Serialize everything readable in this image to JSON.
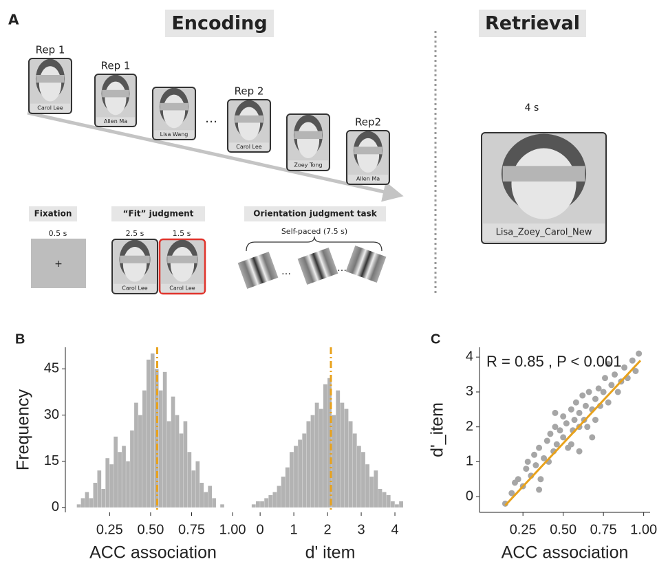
{
  "panel_a": {
    "label": "A",
    "encoding_title": "Encoding",
    "retrieval_title": "Retrieval",
    "encoding_faces": [
      {
        "rep": "Rep 1",
        "name": "Carol Lee"
      },
      {
        "rep": "Rep 1",
        "name": "Allen Ma"
      },
      {
        "name": "Lisa Wang"
      },
      {
        "rep": "Rep 2",
        "name": "Carol Lee"
      },
      {
        "name": "Zoey Tong"
      },
      {
        "rep": "Rep2",
        "name": "Allen Ma"
      }
    ],
    "ellipsis": "…",
    "fixation": {
      "title": "Fixation",
      "duration": "0.5 s",
      "symbol": "+"
    },
    "fit": {
      "title": "“Fit” judgment",
      "durations": [
        "2.5 s",
        "1.5 s"
      ],
      "names": [
        "Carol Lee",
        "Carol Lee"
      ]
    },
    "orientation": {
      "title": "Orientation judgment task",
      "duration": "Self-paced (7.5 s)",
      "ellipses": [
        "…",
        "…"
      ]
    },
    "retrieval": {
      "duration": "4 s",
      "label": "Lisa_Zoey_Carol_New"
    }
  },
  "panel_b_label": "B",
  "panel_c_label": "C",
  "chart_data": [
    {
      "type": "histogram",
      "xlabel": "ACC association",
      "ylabel": "Frequency",
      "color": "#b3b3b3",
      "bins": [
        0.05,
        0.075,
        0.1,
        0.125,
        0.15,
        0.175,
        0.2,
        0.225,
        0.25,
        0.275,
        0.3,
        0.325,
        0.35,
        0.375,
        0.4,
        0.425,
        0.45,
        0.475,
        0.5,
        0.525,
        0.55,
        0.575,
        0.6,
        0.625,
        0.65,
        0.675,
        0.7,
        0.725,
        0.75,
        0.775,
        0.8,
        0.825,
        0.85,
        0.875,
        0.9,
        0.925,
        0.95
      ],
      "values": [
        1,
        3,
        5,
        3,
        8,
        12,
        6,
        16,
        14,
        23,
        18,
        20,
        15,
        25,
        34,
        30,
        38,
        48,
        50,
        45,
        38,
        44,
        28,
        36,
        30,
        24,
        28,
        18,
        12,
        15,
        8,
        5,
        7,
        3,
        0,
        1
      ],
      "vline": 0.54,
      "vline_color": "#e8a21c",
      "xlim": [
        -0.02,
        1.05
      ],
      "ylim": [
        -1.6,
        52
      ],
      "xticks": [
        {
          "value": 0.25,
          "label": "0.25"
        },
        {
          "value": 0.5,
          "label": "0.50"
        },
        {
          "value": 0.75,
          "label": "0.75"
        },
        {
          "value": 1,
          "label": "1.00"
        }
      ],
      "yticks": [
        0,
        15,
        30,
        45
      ]
    },
    {
      "type": "histogram",
      "xlabel": "d' item",
      "color": "#b3b3b3",
      "bins": [
        -0.25,
        -0.125,
        0,
        0.125,
        0.25,
        0.375,
        0.5,
        0.625,
        0.75,
        0.875,
        1,
        1.125,
        1.25,
        1.375,
        1.5,
        1.625,
        1.75,
        1.875,
        2,
        2.125,
        2.25,
        2.375,
        2.5,
        2.625,
        2.75,
        2.875,
        3,
        3.125,
        3.25,
        3.375,
        3.5,
        3.625,
        3.75,
        3.875,
        4,
        4.125,
        4.25
      ],
      "values": [
        1,
        2,
        2,
        3,
        4,
        5,
        7,
        10,
        13,
        18,
        20,
        22,
        24,
        28,
        30,
        34,
        32,
        40,
        42,
        30,
        38,
        34,
        32,
        28,
        24,
        20,
        18,
        14,
        10,
        12,
        6,
        5,
        4,
        2,
        1,
        2
      ],
      "vline": 2.1,
      "vline_color": "#e8a21c",
      "xlim": [
        -0.37,
        4.53
      ],
      "ylim": [
        -1.6,
        52
      ],
      "xticks": [
        0,
        1,
        2,
        3,
        4
      ]
    },
    {
      "type": "scatter",
      "xlabel": "ACC association",
      "ylabel": "d'_item",
      "annotation": "R = 0.85 , P < 0.001",
      "color": "#a6a6a6",
      "fit_color": "#e8a21c",
      "x": [
        0.14,
        0.18,
        0.2,
        0.22,
        0.25,
        0.27,
        0.28,
        0.3,
        0.32,
        0.33,
        0.35,
        0.36,
        0.38,
        0.4,
        0.41,
        0.42,
        0.44,
        0.45,
        0.46,
        0.48,
        0.5,
        0.5,
        0.52,
        0.53,
        0.55,
        0.56,
        0.57,
        0.58,
        0.6,
        0.6,
        0.62,
        0.63,
        0.64,
        0.65,
        0.66,
        0.68,
        0.7,
        0.7,
        0.72,
        0.73,
        0.75,
        0.76,
        0.78,
        0.8,
        0.82,
        0.84,
        0.86,
        0.88,
        0.9,
        0.93,
        0.95,
        0.97,
        0.55,
        0.45,
        0.68,
        0.35,
        0.78,
        0.6
      ],
      "y": [
        -0.2,
        0.1,
        0.4,
        0.5,
        0.3,
        0.8,
        1.0,
        0.6,
        1.2,
        0.9,
        1.4,
        0.5,
        1.1,
        1.6,
        1.0,
        1.8,
        1.3,
        2.0,
        1.5,
        1.9,
        1.7,
        2.3,
        2.1,
        1.4,
        2.5,
        1.9,
        2.2,
        2.7,
        2.0,
        2.4,
        2.9,
        2.2,
        2.6,
        2.0,
        3.0,
        2.5,
        2.8,
        2.2,
        3.1,
        2.6,
        3.0,
        3.4,
        2.7,
        3.2,
        3.5,
        3.0,
        3.3,
        3.7,
        3.4,
        3.9,
        3.6,
        4.1,
        1.5,
        2.4,
        1.7,
        0.2,
        3.8,
        1.3
      ],
      "fit": {
        "x": [
          0.14,
          0.98
        ],
        "y": [
          -0.25,
          3.9
        ]
      },
      "xlim": [
        -0.02,
        1.04
      ],
      "ylim": [
        -0.45,
        4.28
      ],
      "xticks": [
        {
          "value": 0.25,
          "label": "0.25"
        },
        {
          "value": 0.5,
          "label": "0.50"
        },
        {
          "value": 0.75,
          "label": "0.75"
        },
        {
          "value": 1,
          "label": "1.00"
        }
      ],
      "yticks": [
        0,
        1,
        2,
        3,
        4
      ]
    }
  ]
}
